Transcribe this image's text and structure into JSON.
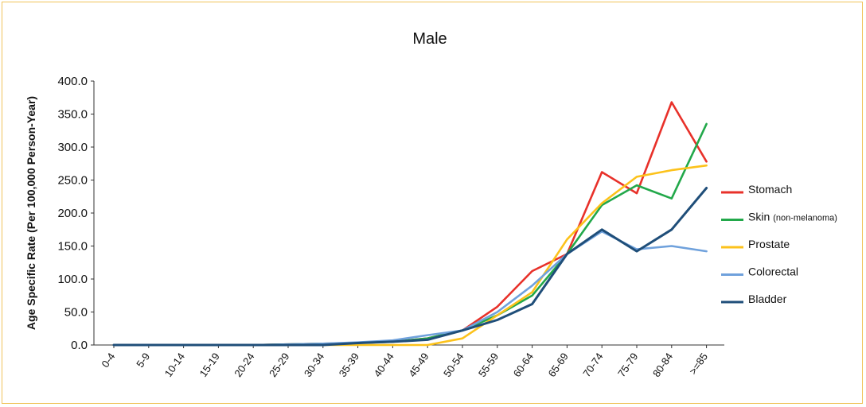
{
  "chart_data": {
    "type": "line",
    "title": "Male",
    "xlabel": "",
    "ylabel": "Age Specific Rate  (Per 100,000 Person-Year)",
    "ylim": [
      0,
      400
    ],
    "yticks": [
      "0.0",
      "50.0",
      "100.0",
      "150.0",
      "200.0",
      "250.0",
      "300.0",
      "350.0",
      "400.0"
    ],
    "categories": [
      "0-4",
      "5-9",
      "10-14",
      "15-19",
      "20-24",
      "25-29",
      "30-34",
      "35-39",
      "40-44",
      "45-49",
      "50-54",
      "55-59",
      "60-64",
      "65-69",
      "70-74",
      "75-79",
      "80-84",
      ">=85"
    ],
    "legend_position": "right",
    "grid": false,
    "series": [
      {
        "name": "Stomach",
        "note": "",
        "color": "#e8312a",
        "values": [
          0,
          0,
          0,
          0,
          0,
          1,
          2,
          3,
          5,
          10,
          22,
          58,
          112,
          138,
          262,
          230,
          368,
          278
        ]
      },
      {
        "name": "Skin",
        "note": "(non-melanoma)",
        "color": "#22a84a",
        "values": [
          0,
          0,
          0,
          0,
          0,
          1,
          2,
          3,
          5,
          10,
          22,
          45,
          75,
          138,
          212,
          242,
          222,
          335
        ]
      },
      {
        "name": "Prostate",
        "note": "",
        "color": "#fcc21b",
        "values": [
          0,
          0,
          0,
          0,
          0,
          0,
          0,
          0,
          0,
          0,
          10,
          45,
          80,
          160,
          215,
          255,
          265,
          272
        ]
      },
      {
        "name": "Colorectal",
        "note": "",
        "color": "#6fa1dc",
        "values": [
          0,
          0,
          0,
          0,
          0,
          1,
          2,
          4,
          7,
          15,
          22,
          50,
          90,
          138,
          172,
          145,
          150,
          142
        ]
      },
      {
        "name": "Bladder",
        "note": "",
        "color": "#1f4e79",
        "values": [
          0,
          0,
          0,
          0,
          0,
          0,
          0,
          3,
          5,
          8,
          22,
          38,
          62,
          138,
          175,
          142,
          175,
          238
        ]
      }
    ]
  }
}
